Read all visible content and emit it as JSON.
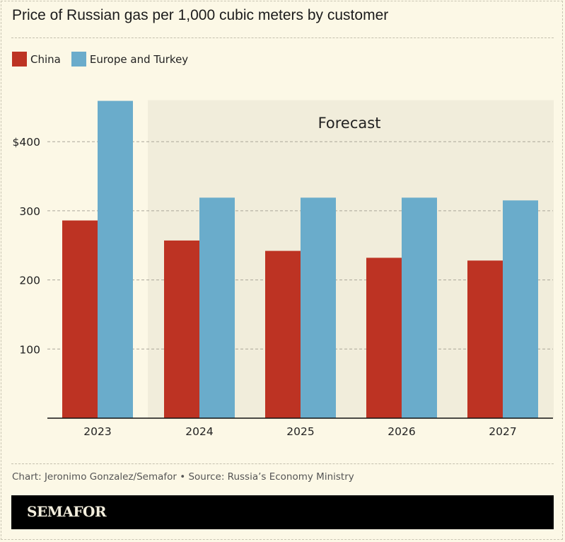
{
  "title": "Price of Russian gas per 1,000 cubic meters by customer",
  "legend": [
    {
      "label": "China",
      "color": "#bd3323"
    },
    {
      "label": "Europe and Turkey",
      "color": "#6aaccb"
    }
  ],
  "forecast_label": "Forecast",
  "source": "Chart: Jeronimo Gonzalez/Semafor • Source: Russia’s Economy Ministry",
  "brand": "SEMAFOR",
  "colors": {
    "background": "#fcf8e6",
    "forecast_background": "#f1eddb",
    "china": "#bd3323",
    "europe_turkey": "#6aaccb",
    "gridline": "#aaa69a",
    "axis": "#111111"
  },
  "chart_data": {
    "type": "bar",
    "title": "Price of Russian gas per 1,000 cubic meters by customer",
    "xlabel": "",
    "ylabel": "",
    "categories": [
      "2023",
      "2024",
      "2025",
      "2026",
      "2027"
    ],
    "series": [
      {
        "name": "China",
        "values": [
          286,
          257,
          242,
          232,
          228
        ]
      },
      {
        "name": "Europe and Turkey",
        "values": [
          459,
          319,
          319,
          319,
          315
        ]
      }
    ],
    "ylim": [
      0,
      460
    ],
    "yticks": [
      100,
      200,
      300,
      400
    ],
    "ytick_labels": [
      "100",
      "200",
      "300",
      "$400"
    ],
    "grid": true,
    "legend_position": "top-left",
    "annotations": [
      {
        "text": "Forecast",
        "applies_to": [
          "2024",
          "2025",
          "2026",
          "2027"
        ]
      }
    ]
  }
}
